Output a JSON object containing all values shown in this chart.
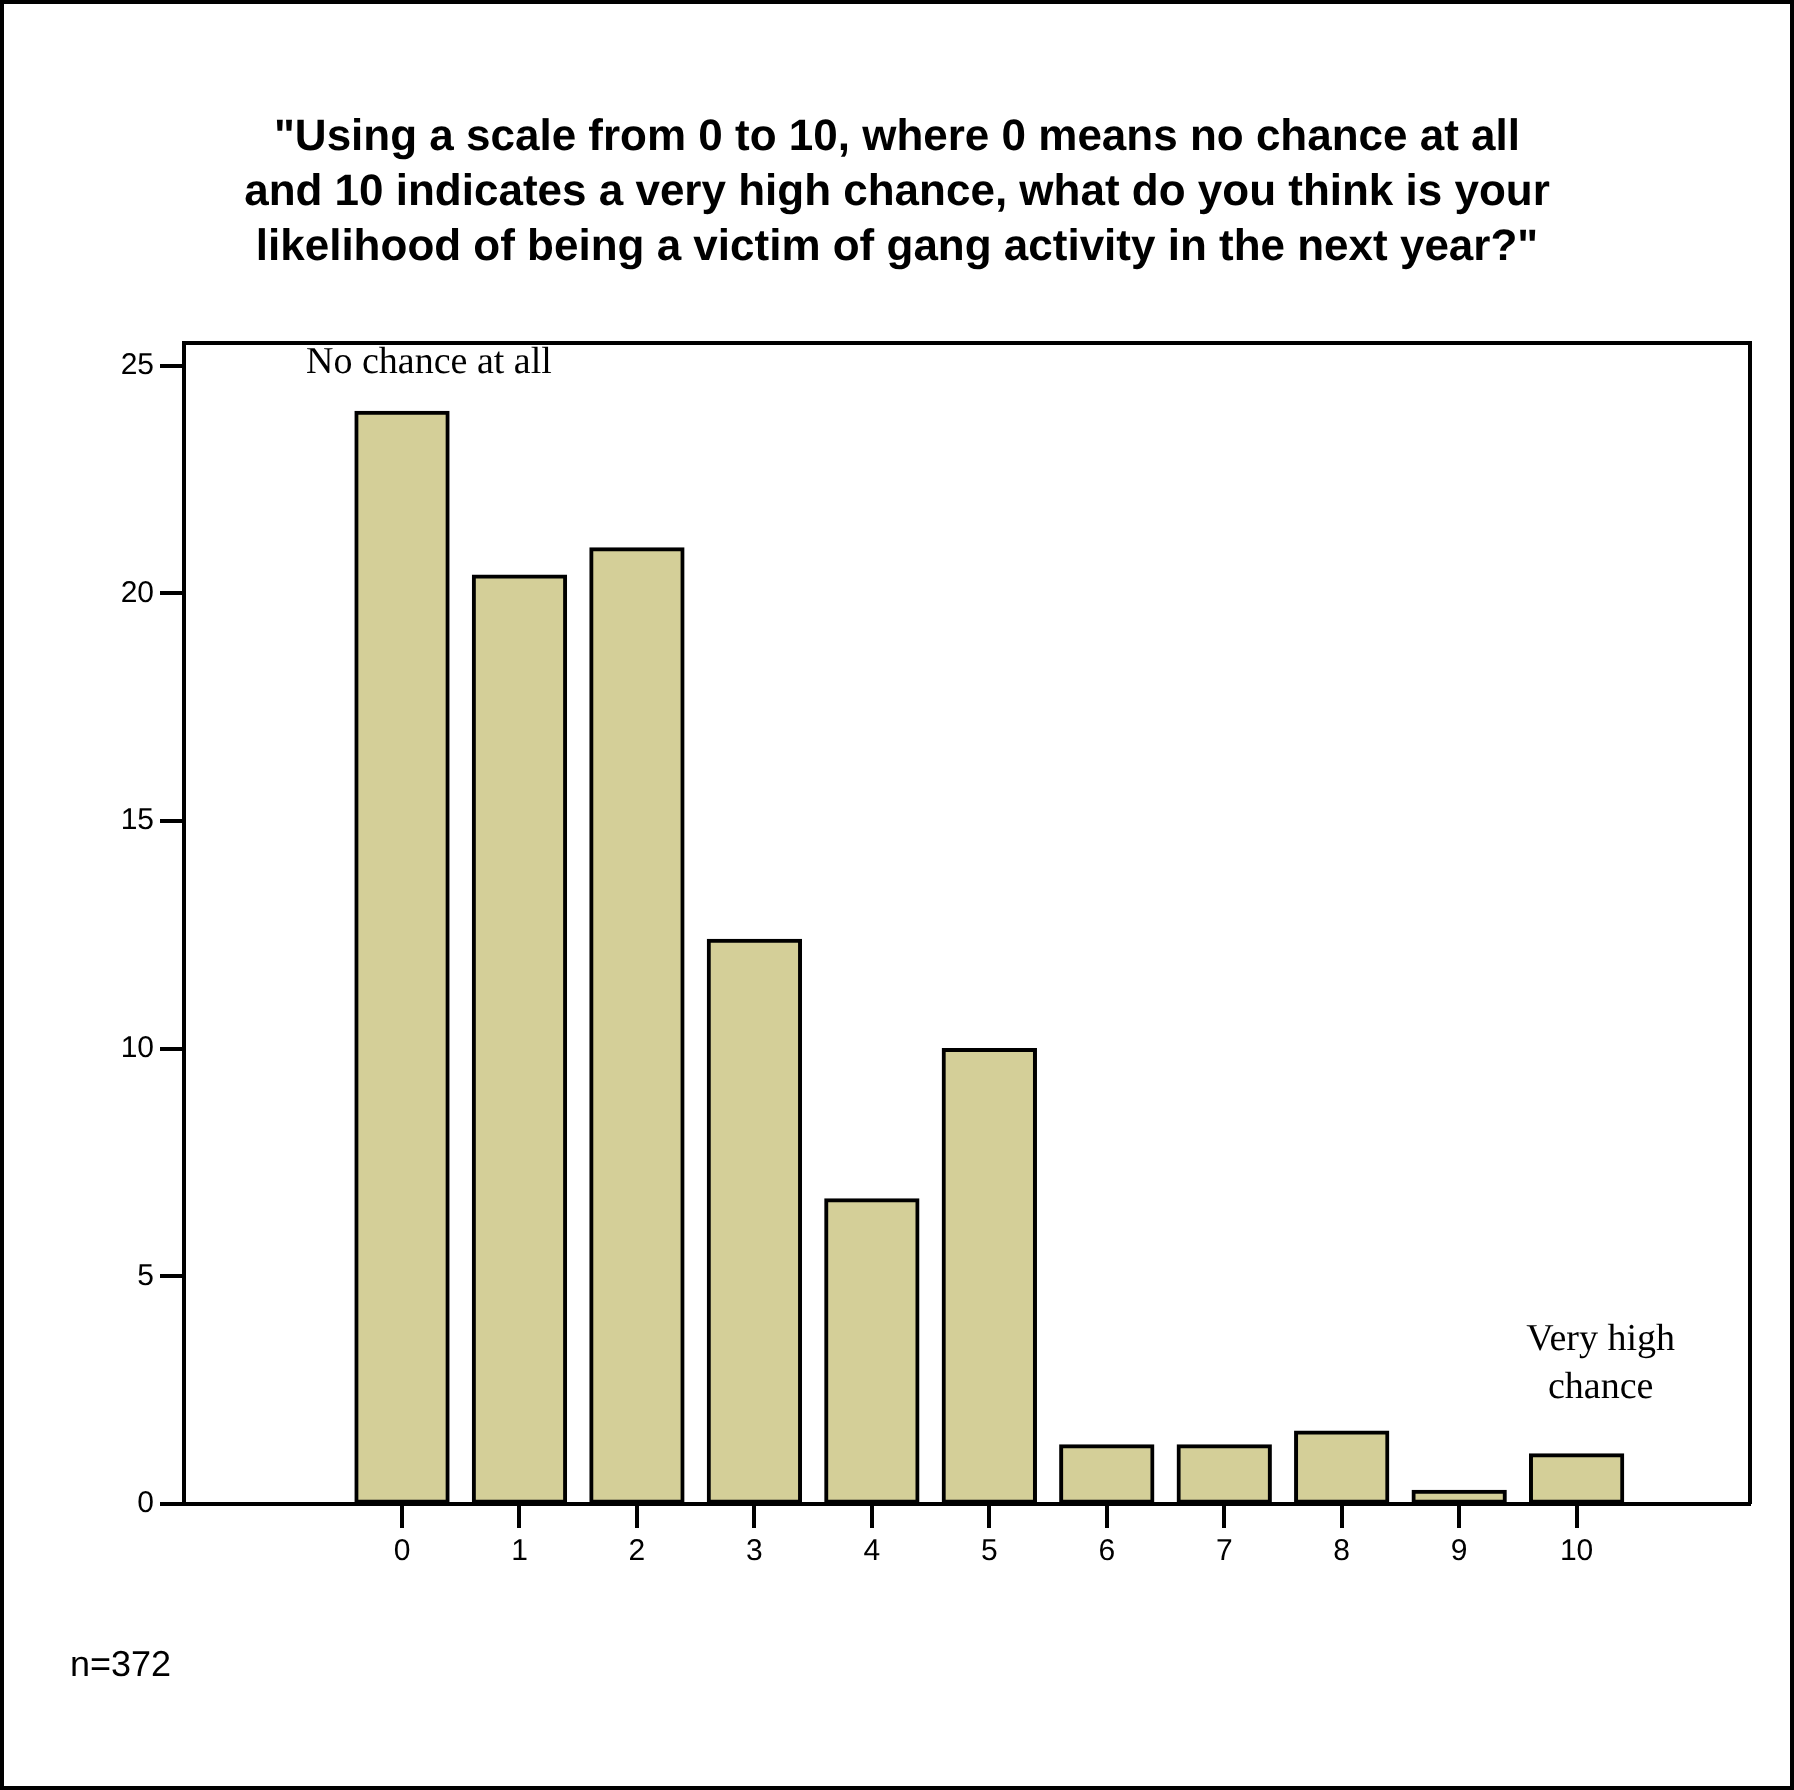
{
  "chart_data": {
    "type": "bar",
    "title": [
      "\"Using a scale from 0 to 10, where 0 means no chance at all",
      "and 10 indicates a very high chance, what do you think is your",
      "likelihood of being a victim of gang activity in the next year?\""
    ],
    "categories": [
      "0",
      "1",
      "2",
      "3",
      "4",
      "5",
      "6",
      "7",
      "8",
      "9",
      "10"
    ],
    "values": [
      24.0,
      20.4,
      21.0,
      12.4,
      6.7,
      10.0,
      1.3,
      1.3,
      1.6,
      0.3,
      1.1
    ],
    "color": "#d4cf98",
    "ylim": [
      0,
      25.5
    ],
    "yticks": [
      0,
      5,
      10,
      15,
      20,
      25
    ],
    "grid": false,
    "legend": false,
    "annotations": [
      "No chance at all",
      "Very high chance",
      "n=372"
    ]
  }
}
